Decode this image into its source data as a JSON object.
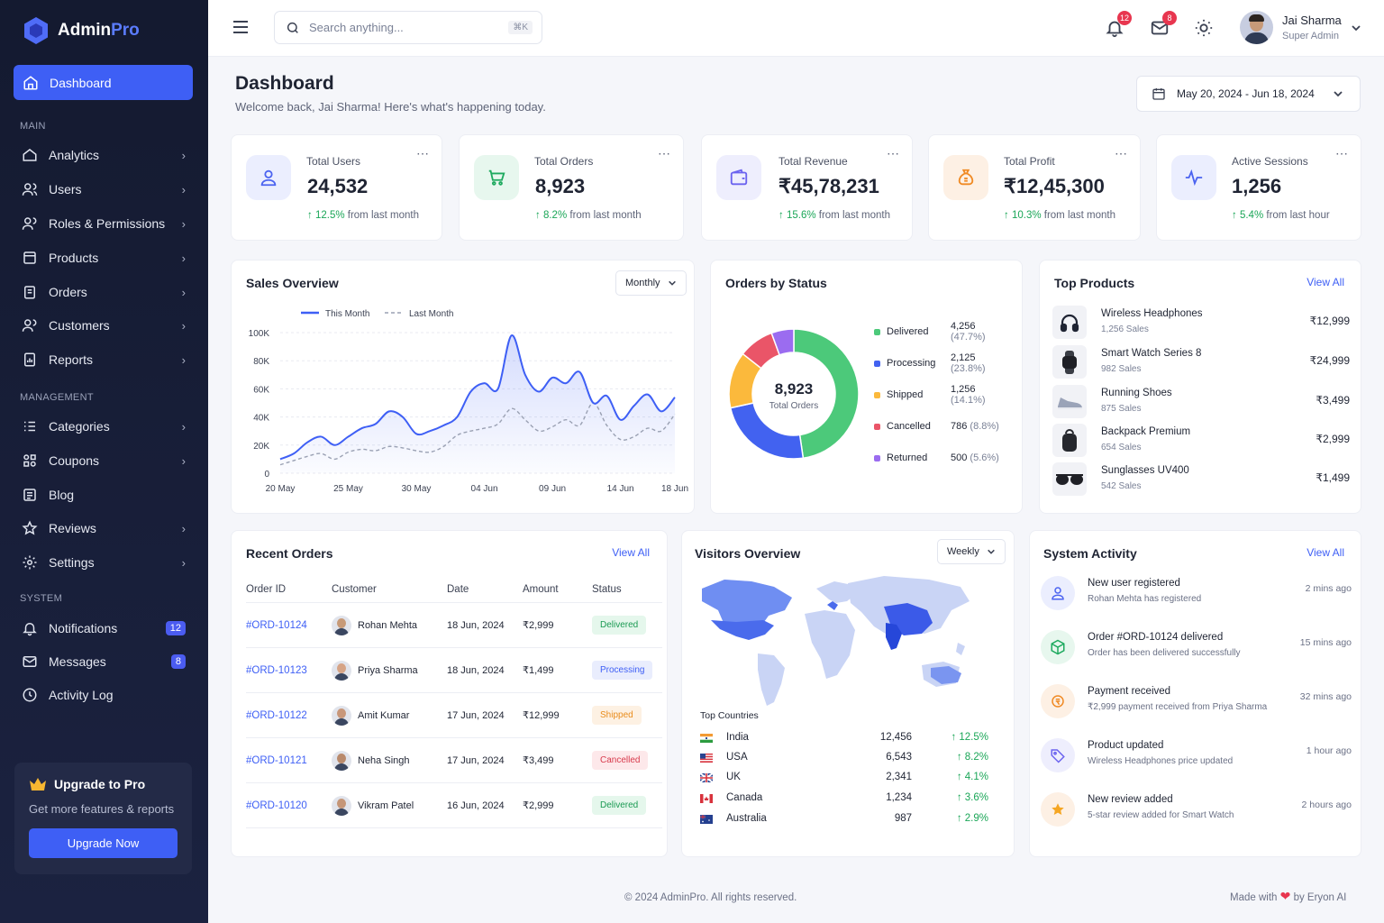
{
  "app": {
    "name_a": "Admin",
    "name_b": "Pro"
  },
  "sidebar": {
    "active": "Dashboard",
    "sections": {
      "main": "MAIN",
      "management": "MANAGEMENT",
      "system": "SYSTEM"
    },
    "items": [
      {
        "label": "Analytics"
      },
      {
        "label": "Users"
      },
      {
        "label": "Roles & Permissions"
      },
      {
        "label": "Products"
      },
      {
        "label": "Orders"
      },
      {
        "label": "Customers"
      },
      {
        "label": "Reports"
      },
      {
        "label": "Categories"
      },
      {
        "label": "Coupons"
      },
      {
        "label": "Blog"
      },
      {
        "label": "Reviews"
      },
      {
        "label": "Settings"
      },
      {
        "label": "Notifications",
        "count": "12"
      },
      {
        "label": "Messages",
        "count": "8"
      },
      {
        "label": "Activity Log"
      }
    ],
    "upgrade": {
      "title": "Upgrade to Pro",
      "subtitle": "Get more features & reports",
      "button": "Upgrade Now"
    }
  },
  "topbar": {
    "search_placeholder": "Search anything...",
    "shortcut": "⌘K",
    "notif_count": "12",
    "msg_count": "8",
    "user_name": "Jai Sharma",
    "user_role": "Super Admin"
  },
  "page": {
    "title": "Dashboard",
    "subtitle": "Welcome back, Jai Sharma! Here's what's happening today.",
    "date_range": "May 20, 2024 - Jun 18, 2024"
  },
  "stats": [
    {
      "label": "Total Users",
      "value": "24,532",
      "change": "12.5%",
      "period": "from last month"
    },
    {
      "label": "Total Orders",
      "value": "8,923",
      "change": "8.2%",
      "period": "from last month"
    },
    {
      "label": "Total Revenue",
      "value": "₹45,78,231",
      "change": "15.6%",
      "period": "from last month"
    },
    {
      "label": "Total Profit",
      "value": "₹12,45,300",
      "change": "10.3%",
      "period": "from last month"
    },
    {
      "label": "Active Sessions",
      "value": "1,256",
      "change": "5.4%",
      "period": "from last hour"
    }
  ],
  "sales": {
    "title": "Sales Overview",
    "period": "Monthly"
  },
  "orders_status": {
    "title": "Orders by Status",
    "total": "8,923",
    "total_label": "Total Orders",
    "rows": [
      {
        "label": "Delivered",
        "value": "4,256",
        "pct": "(47.7%)",
        "color": "#4cc97a"
      },
      {
        "label": "Processing",
        "value": "2,125",
        "pct": "(23.8%)",
        "color": "#4262f0"
      },
      {
        "label": "Shipped",
        "value": "1,256",
        "pct": "(14.1%)",
        "color": "#fbb93c"
      },
      {
        "label": "Cancelled",
        "value": "786",
        "pct": "(8.8%)",
        "color": "#ea5568"
      },
      {
        "label": "Returned",
        "value": "500",
        "pct": "(5.6%)",
        "color": "#9b6cf0"
      }
    ]
  },
  "top_products": {
    "title": "Top Products",
    "view_all": "View All",
    "items": [
      {
        "name": "Wireless Headphones",
        "sales": "1,256 Sales",
        "price": "₹12,999",
        "icon": "headphones-icon"
      },
      {
        "name": "Smart Watch Series 8",
        "sales": "982 Sales",
        "price": "₹24,999",
        "icon": "watch-icon"
      },
      {
        "name": "Running Shoes",
        "sales": "875 Sales",
        "price": "₹3,499",
        "icon": "shoe-icon"
      },
      {
        "name": "Backpack Premium",
        "sales": "654 Sales",
        "price": "₹2,999",
        "icon": "backpack-icon"
      },
      {
        "name": "Sunglasses UV400",
        "sales": "542 Sales",
        "price": "₹1,499",
        "icon": "sunglasses-icon"
      }
    ]
  },
  "recent_orders": {
    "title": "Recent Orders",
    "view_all": "View All",
    "headers": [
      "Order ID",
      "Customer",
      "Date",
      "Amount",
      "Status"
    ],
    "rows": [
      {
        "id": "#ORD-10124",
        "customer": "Rohan Mehta",
        "date": "18 Jun, 2024",
        "amount": "₹2,999",
        "status": "Delivered"
      },
      {
        "id": "#ORD-10123",
        "customer": "Priya Sharma",
        "date": "18 Jun, 2024",
        "amount": "₹1,499",
        "status": "Processing"
      },
      {
        "id": "#ORD-10122",
        "customer": "Amit Kumar",
        "date": "17 Jun, 2024",
        "amount": "₹12,999",
        "status": "Shipped"
      },
      {
        "id": "#ORD-10121",
        "customer": "Neha Singh",
        "date": "17 Jun, 2024",
        "amount": "₹3,499",
        "status": "Cancelled"
      },
      {
        "id": "#ORD-10120",
        "customer": "Vikram Patel",
        "date": "16 Jun, 2024",
        "amount": "₹2,999",
        "status": "Delivered"
      }
    ]
  },
  "visitors": {
    "title": "Visitors Overview",
    "period": "Weekly",
    "top_countries": "Top Countries",
    "countries": [
      {
        "name": "India",
        "value": "12,456",
        "growth": "12.5%"
      },
      {
        "name": "USA",
        "value": "6,543",
        "growth": "8.2%"
      },
      {
        "name": "UK",
        "value": "2,341",
        "growth": "4.1%"
      },
      {
        "name": "Canada",
        "value": "1,234",
        "growth": "3.6%"
      },
      {
        "name": "Australia",
        "value": "987",
        "growth": "2.9%"
      }
    ]
  },
  "activity": {
    "title": "System Activity",
    "view_all": "View All",
    "items": [
      {
        "title": "New user registered",
        "desc": "Rohan Mehta has registered",
        "time": "2 mins ago"
      },
      {
        "title": "Order #ORD-10124 delivered",
        "desc": "Order has been delivered successfully",
        "time": "15 mins ago"
      },
      {
        "title": "Payment received",
        "desc": "₹2,999 payment received from Priya Sharma",
        "time": "32 mins ago"
      },
      {
        "title": "Product updated",
        "desc": "Wireless Headphones price updated",
        "time": "1 hour ago"
      },
      {
        "title": "New review added",
        "desc": "5-star review added for Smart Watch",
        "time": "2 hours ago"
      }
    ]
  },
  "footer": {
    "copyright": "© 2024 AdminPro. All rights reserved.",
    "made_a": "Made with",
    "made_b": "by Eryon AI"
  },
  "chart_data": [
    {
      "type": "line",
      "x": [
        "20 May",
        "21 May",
        "22 May",
        "23 May",
        "24 May",
        "25 May",
        "26 May",
        "27 May",
        "28 May",
        "29 May",
        "30 May",
        "31 May",
        "01 Jun",
        "02 Jun",
        "03 Jun",
        "04 Jun",
        "05 Jun",
        "06 Jun",
        "07 Jun",
        "08 Jun",
        "09 Jun",
        "10 Jun",
        "11 Jun",
        "12 Jun",
        "13 Jun",
        "14 Jun",
        "15 Jun",
        "16 Jun",
        "17 Jun",
        "18 Jun"
      ],
      "x_ticks": [
        "20 May",
        "25 May",
        "30 May",
        "04 Jun",
        "09 Jun",
        "14 Jun",
        "18 Jun"
      ],
      "y_ticks": [
        "0",
        "20K",
        "40K",
        "60K",
        "80K",
        "100K"
      ],
      "ylim": [
        0,
        100000
      ],
      "series": [
        {
          "name": "This Month",
          "color": "#3e5ff5",
          "values": [
            10000,
            14000,
            22000,
            26000,
            20000,
            26000,
            32000,
            35000,
            44000,
            40000,
            28000,
            30000,
            34000,
            40000,
            58000,
            64000,
            60000,
            98000,
            70000,
            58000,
            68000,
            64000,
            72000,
            50000,
            55000,
            38000,
            48000,
            56000,
            44000,
            54000
          ]
        },
        {
          "name": "Last Month",
          "color": "#9aa1b3",
          "values": [
            6000,
            9000,
            12000,
            14000,
            10000,
            15000,
            17000,
            16000,
            19000,
            18000,
            16000,
            15000,
            19000,
            27000,
            30000,
            32000,
            35000,
            46000,
            38000,
            30000,
            33000,
            38000,
            34000,
            50000,
            34000,
            24000,
            26000,
            32000,
            30000,
            42000
          ]
        }
      ]
    },
    {
      "type": "pie",
      "categories": [
        "Delivered",
        "Processing",
        "Shipped",
        "Cancelled",
        "Returned"
      ],
      "values": [
        4256,
        2125,
        1256,
        786,
        500
      ],
      "colors": [
        "#4cc97a",
        "#4262f0",
        "#fbb93c",
        "#ea5568",
        "#9b6cf0"
      ]
    }
  ]
}
